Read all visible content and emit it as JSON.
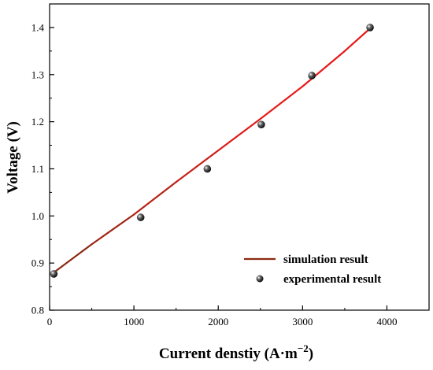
{
  "chart_data": {
    "type": "line",
    "xlabel": "Current denstiy  (A·m",
    "xlabel_sup": "−2",
    "xlabel_close": ")",
    "ylabel": "Voltage (V)",
    "xlim": [
      0,
      4500
    ],
    "ylim": [
      0.8,
      1.45
    ],
    "x_ticks": [
      0,
      1000,
      2000,
      3000,
      4000
    ],
    "x_tick_labels": [
      "0",
      "1000",
      "2000",
      "3000",
      "4000"
    ],
    "y_ticks": [
      0.8,
      0.9,
      1.0,
      1.1,
      1.2,
      1.3,
      1.4
    ],
    "y_tick_labels": [
      "0.8",
      "0.9",
      "1.0",
      "1.1",
      "1.2",
      "1.3",
      "1.4"
    ],
    "grid": false,
    "legend_position": "bottom-right",
    "series": [
      {
        "name": "simulation result",
        "kind": "line",
        "colors": [
          "#8b2a12",
          "#e61a1a"
        ],
        "x": [
          50,
          500,
          1000,
          1500,
          2000,
          2500,
          3000,
          3500,
          3800
        ],
        "y": [
          0.88,
          0.94,
          1.003,
          1.072,
          1.139,
          1.206,
          1.275,
          1.35,
          1.398
        ]
      },
      {
        "name": "experimental result",
        "kind": "scatter",
        "color": "#000000",
        "x": [
          50,
          1080,
          1870,
          2510,
          3110,
          3800
        ],
        "y": [
          0.877,
          0.997,
          1.1,
          1.194,
          1.298,
          1.4
        ]
      }
    ]
  }
}
